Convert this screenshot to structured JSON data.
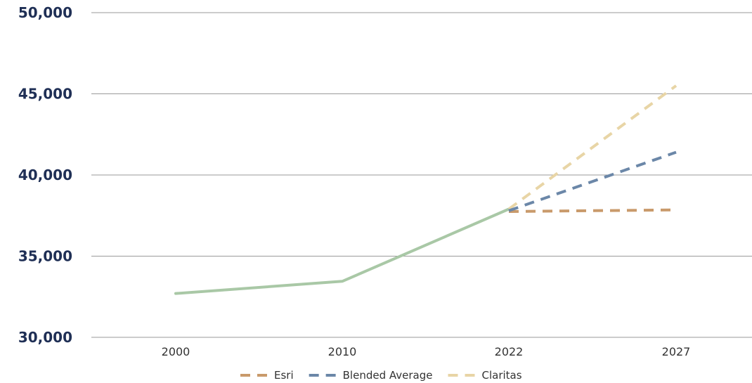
{
  "chart_data": {
    "type": "line",
    "categories": [
      "2000",
      "2010",
      "2022",
      "2027"
    ],
    "ylim": [
      30000,
      50000
    ],
    "yticks": [
      30000,
      35000,
      40000,
      45000,
      50000
    ],
    "ytick_labels": [
      "30,000",
      "35,000",
      "40,000",
      "45,000",
      "50,000"
    ],
    "grid": true,
    "legend_position": "bottom",
    "series": [
      {
        "key": "historical",
        "name": "",
        "values": [
          32700,
          33450,
          37900,
          null
        ],
        "color": "#a9c8a6",
        "dashed": false
      },
      {
        "key": "esri",
        "name": "Esri",
        "values": [
          null,
          null,
          37750,
          37850
        ],
        "color": "#c99a6b",
        "dashed": true
      },
      {
        "key": "blended",
        "name": "Blended Average",
        "values": [
          null,
          null,
          37800,
          41400
        ],
        "color": "#6b87a8",
        "dashed": true
      },
      {
        "key": "claritas",
        "name": "Claritas",
        "values": [
          null,
          null,
          37900,
          45500
        ],
        "color": "#e8d5a6",
        "dashed": true
      }
    ],
    "legend": [
      "Esri",
      "Blended Average",
      "Claritas"
    ]
  }
}
